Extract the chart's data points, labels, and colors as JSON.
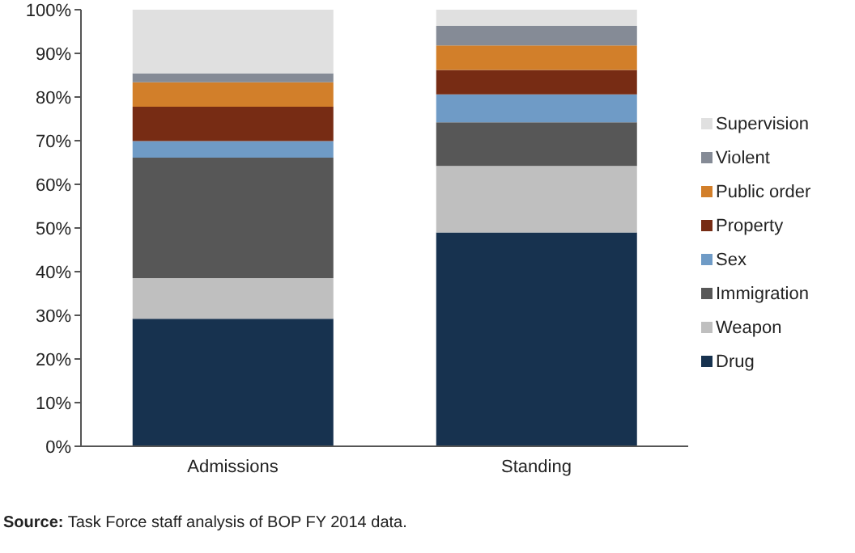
{
  "chart_data": {
    "type": "bar",
    "stacked": true,
    "categories": [
      "Admissions",
      "Standing"
    ],
    "series": [
      {
        "name": "Drug",
        "color": "#17324f",
        "values": [
          29.2,
          49.0
        ]
      },
      {
        "name": "Weapon",
        "color": "#bfbfbf",
        "values": [
          9.3,
          15.2
        ]
      },
      {
        "name": "Immigration",
        "color": "#575757",
        "values": [
          27.6,
          10.0
        ]
      },
      {
        "name": "Sex",
        "color": "#6f9bc6",
        "values": [
          3.8,
          6.4
        ]
      },
      {
        "name": "Property",
        "color": "#772c14",
        "values": [
          7.9,
          5.6
        ]
      },
      {
        "name": "Public order",
        "color": "#d27f2a",
        "values": [
          5.6,
          5.6
        ]
      },
      {
        "name": "Violent",
        "color": "#858b96",
        "values": [
          2.0,
          4.5
        ]
      },
      {
        "name": "Supervision",
        "color": "#e0e0e0",
        "values": [
          14.6,
          3.7
        ]
      }
    ],
    "ylim": [
      0,
      100
    ],
    "yticks": [
      {
        "value": 0,
        "label": "0%"
      },
      {
        "value": 10,
        "label": "10%"
      },
      {
        "value": 20,
        "label": "20%"
      },
      {
        "value": 30,
        "label": "30%"
      },
      {
        "value": 40,
        "label": "40%"
      },
      {
        "value": 50,
        "label": "50%"
      },
      {
        "value": 60,
        "label": "60%"
      },
      {
        "value": 70,
        "label": "70%"
      },
      {
        "value": 80,
        "label": "80%"
      },
      {
        "value": 90,
        "label": "90%"
      },
      {
        "value": 100,
        "label": "100%"
      }
    ],
    "grid": false,
    "legend": "right",
    "annotations": [
      "Source: Task Force staff analysis of BOP FY 2014 data."
    ]
  }
}
